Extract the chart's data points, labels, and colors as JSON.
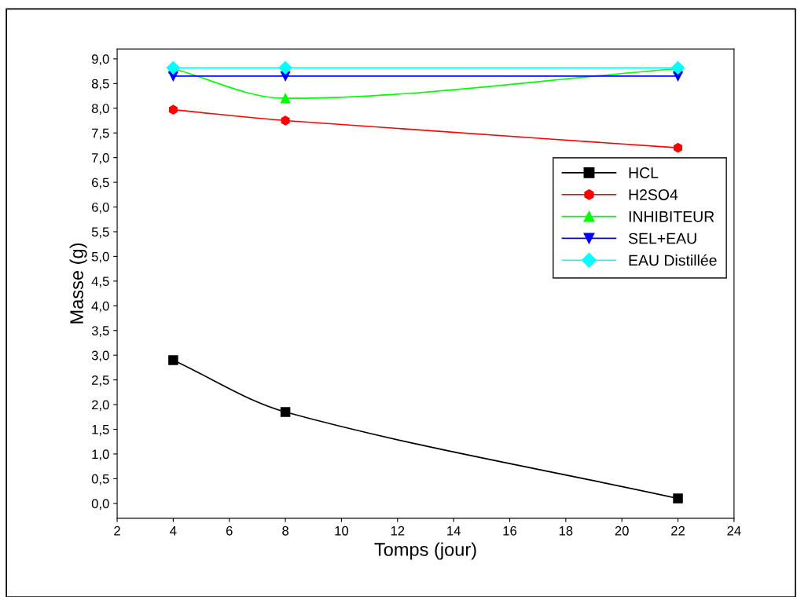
{
  "chart_data": {
    "type": "line",
    "xlabel": "Tomps (jour)",
    "ylabel": "Masse (g)",
    "x": [
      4,
      8,
      22
    ],
    "series": [
      {
        "name": "HCL",
        "color": "#000000",
        "marker": "square",
        "values": [
          2.9,
          1.85,
          0.1
        ]
      },
      {
        "name": "H2SO4",
        "color": "#ff0000",
        "marker": "circle",
        "values": [
          7.97,
          7.75,
          7.2
        ]
      },
      {
        "name": "INHIBITEUR",
        "color": "#00ff00",
        "marker": "triangle",
        "values": [
          8.8,
          8.2,
          8.8
        ]
      },
      {
        "name": "SEL+EAU",
        "color": "#0000ff",
        "marker": "triangle_down",
        "values": [
          8.65,
          8.65,
          8.65
        ]
      },
      {
        "name": "EAU Distillée",
        "color": "#00ffff",
        "marker": "diamond",
        "values": [
          8.82,
          8.82,
          8.82
        ]
      }
    ],
    "xlim": [
      2,
      24
    ],
    "xticks": [
      2,
      4,
      6,
      8,
      10,
      12,
      14,
      16,
      18,
      20,
      22,
      24
    ],
    "ylim": [
      -0.3,
      9.2
    ],
    "yticks": [
      {
        "value": 0,
        "label": "0,0"
      },
      {
        "value": 0.5,
        "label": "0,5"
      },
      {
        "value": 1,
        "label": "1,0"
      },
      {
        "value": 1.5,
        "label": "1,5"
      },
      {
        "value": 2,
        "label": "2,0"
      },
      {
        "value": 2.5,
        "label": "2,5"
      },
      {
        "value": 3,
        "label": "3,0"
      },
      {
        "value": 3.5,
        "label": "3,5"
      },
      {
        "value": 4,
        "label": "4,0"
      },
      {
        "value": 4.5,
        "label": "4,5"
      },
      {
        "value": 5,
        "label": "5,0"
      },
      {
        "value": 5.5,
        "label": "5,5"
      },
      {
        "value": 6,
        "label": "6,0"
      },
      {
        "value": 6.5,
        "label": "6,5"
      },
      {
        "value": 7,
        "label": "7,0"
      },
      {
        "value": 7.5,
        "label": "7,5"
      },
      {
        "value": 8,
        "label": "8,0"
      },
      {
        "value": 8.5,
        "label": "8,5"
      },
      {
        "value": 9,
        "label": "9,0"
      }
    ],
    "grid": false,
    "legend": "right",
    "line_style": "solid"
  }
}
